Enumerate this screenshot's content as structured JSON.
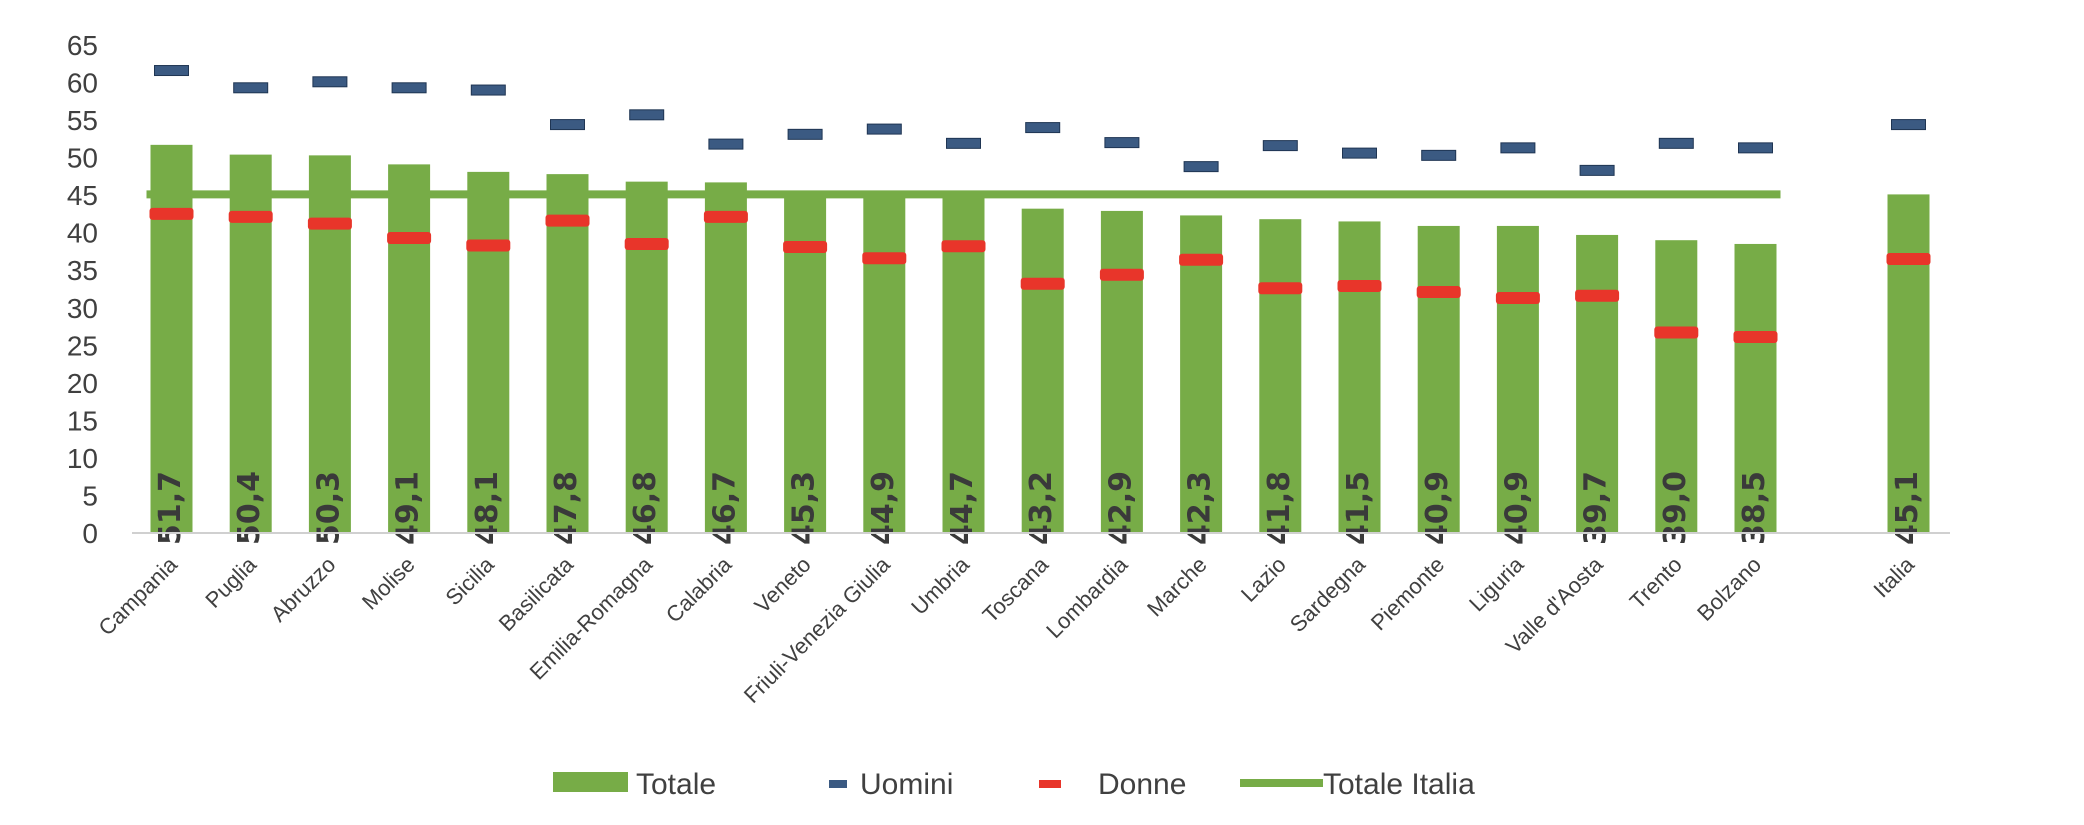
{
  "chart_data": {
    "type": "bar",
    "title": "",
    "xlabel": "",
    "ylabel": "",
    "ylim": [
      0,
      65
    ],
    "yticks": [
      0,
      5,
      10,
      15,
      20,
      25,
      30,
      35,
      40,
      45,
      50,
      55,
      60,
      65
    ],
    "grid": false,
    "legend_position": "bottom",
    "categories": [
      "Campania",
      "Puglia",
      "Abruzzo",
      "Molise",
      "Sicilia",
      "Basilicata",
      "Emilia-Romagna",
      "Calabria",
      "Veneto",
      "Friuli-Venezia Giulia",
      "Umbria",
      "Toscana",
      "Lombardia",
      "Marche",
      "Lazio",
      "Sardegna",
      "Piemonte",
      "Liguria",
      "Valle d'Aosta",
      "Trento",
      "Bolzano",
      "Italia"
    ],
    "series": [
      {
        "name": "Totale",
        "kind": "bar",
        "color": "#77ac47",
        "values": [
          51.7,
          50.4,
          50.3,
          49.1,
          48.1,
          47.8,
          46.8,
          46.7,
          45.3,
          44.9,
          44.7,
          43.2,
          42.9,
          42.3,
          41.8,
          41.5,
          40.9,
          40.9,
          39.7,
          39.0,
          38.5,
          45.1
        ],
        "labels": [
          "51,7",
          "50,4",
          "50,3",
          "49,1",
          "48,1",
          "47,8",
          "46,8",
          "46,7",
          "45,3",
          "44,9",
          "44,7",
          "43,2",
          "42,9",
          "42,3",
          "41,8",
          "41,5",
          "40,9",
          "40,9",
          "39,7",
          "39,0",
          "38,5",
          "45,1"
        ]
      },
      {
        "name": "Uomini",
        "kind": "marker",
        "color": "#3b5a82",
        "values": [
          61.6,
          59.3,
          60.1,
          59.3,
          59.0,
          54.4,
          55.7,
          51.8,
          53.1,
          53.8,
          51.9,
          54.0,
          52.0,
          48.8,
          51.6,
          50.6,
          50.3,
          51.3,
          48.3,
          51.9,
          51.3,
          54.4
        ]
      },
      {
        "name": "Donne",
        "kind": "marker",
        "color": "#e8352a",
        "values": [
          42.5,
          42.1,
          41.2,
          39.3,
          38.3,
          41.6,
          38.5,
          42.1,
          38.1,
          36.6,
          38.2,
          33.2,
          34.4,
          36.4,
          32.6,
          32.9,
          32.1,
          31.3,
          31.6,
          26.7,
          26.1,
          36.5
        ]
      },
      {
        "name": "Totale Italia",
        "kind": "line",
        "color": "#77ac47",
        "value": 45.1
      }
    ]
  }
}
